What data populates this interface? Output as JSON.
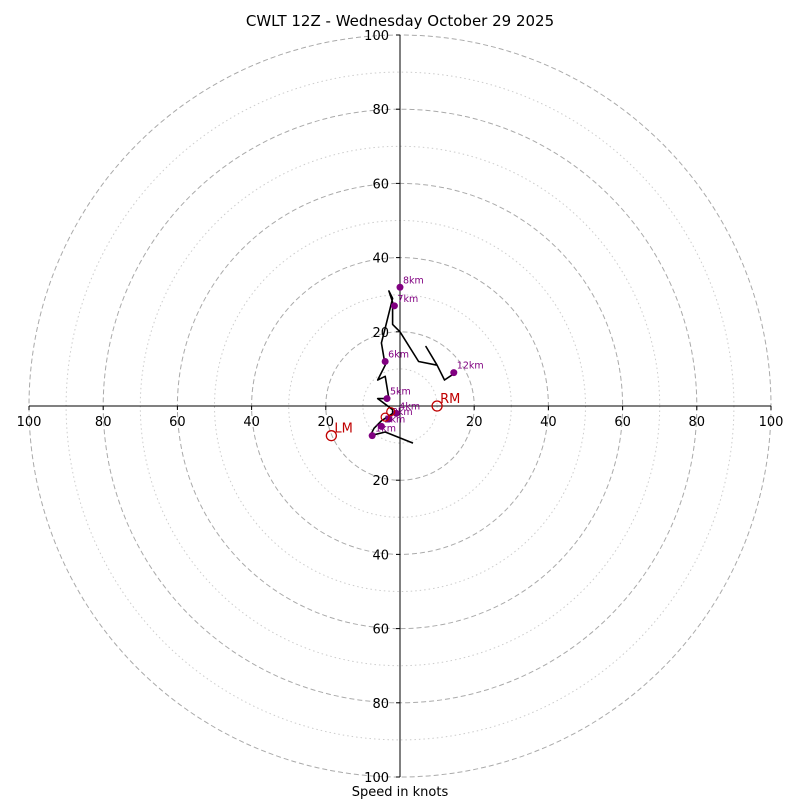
{
  "chart_data": {
    "type": "hodograph",
    "title": "CWLT 12Z - Wednesday October 29 2025",
    "xlabel": "Speed in knots",
    "ring_major": [
      20,
      40,
      60,
      80,
      100
    ],
    "ring_minor": [
      10,
      30,
      50,
      70,
      90
    ],
    "axis_tick_labels": [
      "20",
      "40",
      "60",
      "80",
      "100"
    ],
    "axis_max": 100,
    "hodograph_trace": [
      [
        3.5,
        -10
      ],
      [
        -4,
        -7
      ],
      [
        -8,
        -8
      ],
      [
        -7,
        -6
      ],
      [
        -5,
        -4
      ],
      [
        -2,
        -2
      ],
      [
        -2,
        -1
      ],
      [
        -6,
        2
      ],
      [
        -3,
        2
      ],
      [
        -4,
        8
      ],
      [
        -6,
        7
      ],
      [
        -4,
        11
      ],
      [
        -5,
        17
      ],
      [
        -4,
        21
      ],
      [
        -2,
        29
      ],
      [
        -3,
        31
      ],
      [
        -2,
        28
      ],
      [
        -2,
        22
      ],
      [
        0,
        20
      ],
      [
        5,
        12
      ],
      [
        10,
        11
      ],
      [
        7,
        16
      ],
      [
        10,
        11
      ],
      [
        12,
        7
      ],
      [
        15,
        9
      ]
    ],
    "height_markers": [
      {
        "label": "1km",
        "x": -7.5,
        "y": -8
      },
      {
        "label": "2km",
        "x": -5,
        "y": -5.5
      },
      {
        "label": "3km",
        "x": -3,
        "y": -3.5
      },
      {
        "label": "4km",
        "x": -1,
        "y": -2
      },
      {
        "label": "5km",
        "x": -3.5,
        "y": 2
      },
      {
        "label": "6km",
        "x": -4,
        "y": 12
      },
      {
        "label": "7km",
        "x": -1.5,
        "y": 27
      },
      {
        "label": "8km",
        "x": 0,
        "y": 32
      },
      {
        "label": "12km",
        "x": 14.5,
        "y": 9
      }
    ],
    "storm_motion": [
      {
        "label": "RM",
        "x": 10,
        "y": 0
      },
      {
        "label": "LM",
        "x": -18.5,
        "y": -8
      }
    ],
    "mean_wind": [
      {
        "label": "",
        "x": -2.5,
        "y": -1.5
      },
      {
        "label": "",
        "x": -4,
        "y": -3
      }
    ],
    "colors": {
      "trace": "#000000",
      "height_marker": "#800080",
      "storm_motion": "#c00000",
      "grid": "#aaaaaa"
    }
  }
}
